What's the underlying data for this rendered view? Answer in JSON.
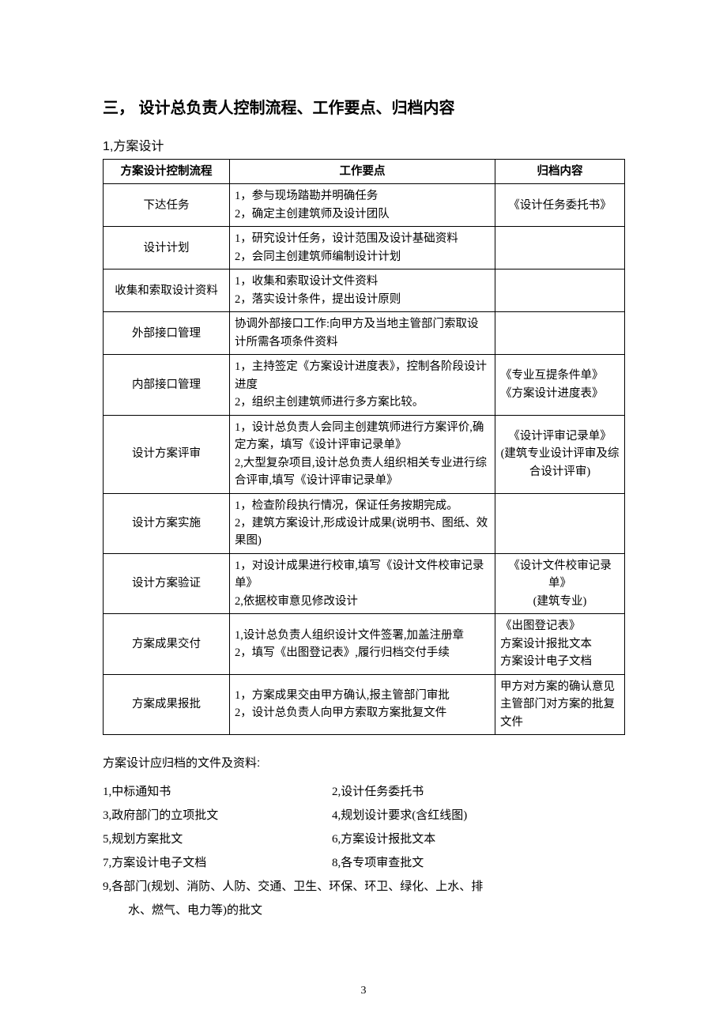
{
  "section_title": "三，  设计总负责人控制流程、工作要点、归档内容",
  "subsection_title": "1,方案设计",
  "table": {
    "headers": {
      "process": "方案设计控制流程",
      "points": "工作要点",
      "archive": "归档内容"
    },
    "rows": [
      {
        "process": "下达任务",
        "points": [
          "1，参与现场踏勘并明确任务",
          "2，确定主创建筑师及设计团队"
        ],
        "archive": "《设计任务委托书》",
        "archive_align": "center"
      },
      {
        "process": "设计计划",
        "points": [
          "1，研究设计任务，设计范围及设计基础资料",
          "2，会同主创建筑师编制设计计划"
        ],
        "archive": "",
        "archive_align": "center"
      },
      {
        "process": "收集和索取设计资料",
        "points": [
          "1，收集和索取设计文件资料",
          "2，落实设计条件，提出设计原则"
        ],
        "archive": "",
        "archive_align": "center"
      },
      {
        "process": "外部接口管理",
        "points": [
          "协调外部接口工作:向甲方及当地主管部门索取设计所需各项条件资料"
        ],
        "archive": "",
        "archive_align": "center"
      },
      {
        "process": "内部接口管理",
        "points": [
          "1，主持签定《方案设计进度表》，控制各阶段设计进度",
          "2，组织主创建筑师进行多方案比较。"
        ],
        "archive": "《专业互提条件单》\n《方案设计进度表》",
        "archive_align": "left"
      },
      {
        "process": "设计方案评审",
        "points": [
          "1，设计总负责人会同主创建筑师进行方案评价,确定方案，填写《设计评审记录单》",
          "2,大型复杂项目,设计总负责人组织相关专业进行综合评审,填写《设计评审记录单》"
        ],
        "archive": "《设计评审记录单》\n(建筑专业设计评审及综合设计评审)",
        "archive_align": "center"
      },
      {
        "process": "设计方案实施",
        "points": [
          "1，检查阶段执行情况，保证任务按期完成。",
          "2，建筑方案设计,形成设计成果(说明书、图纸、效果图)"
        ],
        "archive": "",
        "archive_align": "center"
      },
      {
        "process": "设计方案验证",
        "points": [
          "1，对设计成果进行校审,填写《设计文件校审记录单》",
          "2,依据校审意见修改设计"
        ],
        "archive": "《设计文件校审记录单》\n(建筑专业)",
        "archive_align": "center"
      },
      {
        "process": "方案成果交付",
        "points": [
          "1,设计总负责人组织设计文件签署,加盖注册章",
          "2，填写《出图登记表》,履行归档交付手续"
        ],
        "archive": "《出图登记表》\n方案设计报批文本\n方案设计电子文档",
        "archive_align": "left"
      },
      {
        "process": "方案成果报批",
        "points": [
          "1，方案成果交由甲方确认,报主管部门审批",
          "2，设计总负责人向甲方索取方案批复文件"
        ],
        "archive": "甲方对方案的确认意见\n主管部门对方案的批复文件",
        "archive_align": "left"
      }
    ]
  },
  "archive_list_title": "方案设计应归档的文件及资料:",
  "archive_files": {
    "rows": [
      {
        "left": "1,中标通知书",
        "right": "2,设计任务委托书"
      },
      {
        "left": "3,政府部门的立项批文",
        "right": "4,规划设计要求(含红线图)"
      },
      {
        "left": "5,规划方案批文",
        "right": "6,方案设计报批文本"
      },
      {
        "left": "7,方案设计电子文档",
        "right": "8,各专项审查批文"
      }
    ],
    "full_lines": [
      "9,各部门(规划、消防、人防、交通、卫生、环保、环卫、绿化、上水、排",
      "水、燃气、电力等)的批文"
    ]
  },
  "page_number": "3"
}
